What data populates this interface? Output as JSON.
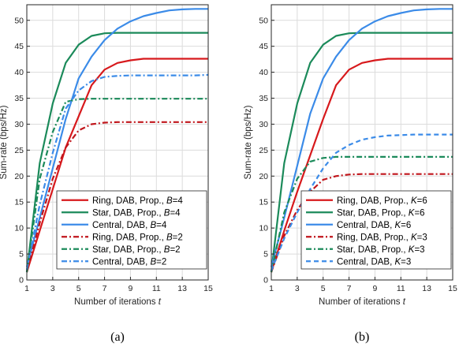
{
  "chart_data": [
    {
      "type": "line",
      "caption": "(a)",
      "xlabel": "Number of iterations",
      "xlabel_var": "t",
      "ylabel": "Sum-rate (bps/Hz)",
      "xlim": [
        1,
        15
      ],
      "ylim": [
        0,
        53
      ],
      "xticks": [
        1,
        3,
        5,
        7,
        9,
        11,
        13,
        15
      ],
      "yticks": [
        0,
        5,
        10,
        15,
        20,
        25,
        30,
        35,
        40,
        45,
        50
      ],
      "grid": true,
      "legend_position": "bottom-right",
      "x": [
        1,
        2,
        3,
        4,
        5,
        6,
        7,
        8,
        9,
        10,
        11,
        12,
        13,
        14,
        15
      ],
      "series": [
        {
          "name": "Ring, DAB, Prop., ",
          "param": "B",
          "param_value": "=4",
          "color": "#d7191c",
          "dash": "solid",
          "values": [
            1.5,
            9.5,
            17.5,
            25.5,
            31.5,
            37.5,
            40.5,
            41.8,
            42.3,
            42.6,
            42.6,
            42.6,
            42.6,
            42.6,
            42.6
          ]
        },
        {
          "name": "Star, DAB, Prop., ",
          "param": "B",
          "param_value": "=4",
          "color": "#1b8a5a",
          "dash": "solid",
          "values": [
            1.5,
            22.5,
            34.0,
            41.8,
            45.3,
            47.0,
            47.5,
            47.6,
            47.6,
            47.6,
            47.6,
            47.6,
            47.6,
            47.6,
            47.6
          ]
        },
        {
          "name": "Central, DAB, ",
          "param": "B",
          "param_value": "=4",
          "color": "#3b8be8",
          "dash": "solid",
          "values": [
            2.5,
            12.0,
            21.5,
            31.0,
            38.8,
            43.0,
            46.2,
            48.4,
            49.8,
            50.8,
            51.4,
            51.9,
            52.1,
            52.2,
            52.2
          ]
        },
        {
          "name": "Ring, DAB, Prop., ",
          "param": "B",
          "param_value": "=2",
          "color": "#c0151b",
          "dash": "dashdot",
          "values": [
            1.5,
            11.0,
            19.5,
            25.5,
            28.8,
            30.0,
            30.3,
            30.4,
            30.4,
            30.4,
            30.4,
            30.4,
            30.4,
            30.4,
            30.4
          ]
        },
        {
          "name": "Star, DAB, Prop., ",
          "param": "B",
          "param_value": "=2",
          "color": "#1b8a5a",
          "dash": "dashdot",
          "values": [
            1.5,
            19.5,
            28.5,
            34.3,
            34.8,
            34.9,
            34.9,
            34.9,
            34.9,
            34.9,
            34.9,
            34.9,
            34.9,
            34.9,
            34.9
          ]
        },
        {
          "name": "Central, DAB, ",
          "param": "B",
          "param_value": "=2",
          "color": "#3b8be8",
          "dash": "dashdot",
          "values": [
            2.0,
            14.5,
            24.5,
            33.0,
            36.5,
            38.3,
            39.1,
            39.3,
            39.4,
            39.4,
            39.4,
            39.4,
            39.4,
            39.4,
            39.5
          ]
        }
      ]
    },
    {
      "type": "line",
      "caption": "(b)",
      "xlabel": "Number of iterations",
      "xlabel_var": "t",
      "ylabel": "Sum-rate (bps/Hz)",
      "xlim": [
        1,
        15
      ],
      "ylim": [
        0,
        53
      ],
      "xticks": [
        1,
        3,
        5,
        7,
        9,
        11,
        13,
        15
      ],
      "yticks": [
        0,
        5,
        10,
        15,
        20,
        25,
        30,
        35,
        40,
        45,
        50
      ],
      "grid": true,
      "legend_position": "bottom-right",
      "x": [
        1,
        2,
        3,
        4,
        5,
        6,
        7,
        8,
        9,
        10,
        11,
        12,
        13,
        14,
        15
      ],
      "series": [
        {
          "name": "Ring, DAB, Prop., ",
          "param": "K",
          "param_value": "=6",
          "color": "#d7191c",
          "dash": "solid",
          "values": [
            1.5,
            9.5,
            17.0,
            24.0,
            31.0,
            37.5,
            40.5,
            41.8,
            42.3,
            42.6,
            42.6,
            42.6,
            42.6,
            42.6,
            42.6
          ]
        },
        {
          "name": "Star, DAB, Prop., ",
          "param": "K",
          "param_value": "=6",
          "color": "#1b8a5a",
          "dash": "solid",
          "values": [
            1.5,
            22.5,
            34.0,
            41.8,
            45.3,
            47.0,
            47.5,
            47.6,
            47.6,
            47.6,
            47.6,
            47.6,
            47.6,
            47.6,
            47.6
          ]
        },
        {
          "name": "Central, DAB, ",
          "param": "K",
          "param_value": "=6",
          "color": "#3b8be8",
          "dash": "solid",
          "values": [
            2.5,
            12.0,
            22.0,
            32.0,
            38.8,
            43.0,
            46.2,
            48.4,
            49.8,
            50.8,
            51.4,
            51.9,
            52.1,
            52.2,
            52.2
          ]
        },
        {
          "name": "Ring, DAB, Prop., ",
          "param": "K",
          "param_value": "=3",
          "color": "#c0151b",
          "dash": "dashdot",
          "values": [
            1.5,
            8.5,
            13.5,
            17.0,
            19.3,
            20.0,
            20.3,
            20.4,
            20.4,
            20.4,
            20.4,
            20.4,
            20.4,
            20.4,
            20.4
          ]
        },
        {
          "name": "Star, DAB, Prop., ",
          "param": "K",
          "param_value": "=3",
          "color": "#1b8a5a",
          "dash": "dashdot",
          "values": [
            1.5,
            13.0,
            19.5,
            22.8,
            23.5,
            23.7,
            23.7,
            23.7,
            23.7,
            23.7,
            23.7,
            23.7,
            23.7,
            23.7,
            23.7
          ]
        },
        {
          "name": "Central, DAB, ",
          "param": "K",
          "param_value": "=3",
          "color": "#3b8be8",
          "dash": "dashed",
          "values": [
            1.8,
            8.0,
            13.0,
            17.5,
            21.5,
            24.5,
            26.0,
            27.0,
            27.5,
            27.8,
            27.9,
            28.0,
            28.0,
            28.0,
            28.0
          ]
        }
      ]
    }
  ]
}
